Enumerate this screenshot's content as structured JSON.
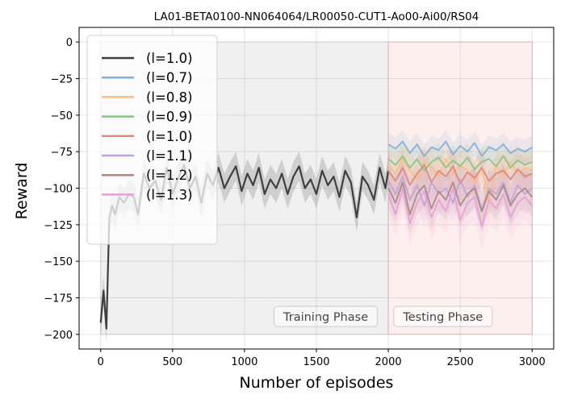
{
  "chart_data": {
    "type": "line",
    "title": "LA01-BETA0100-NN064064/LR00050-CUT1-Ao00-Ai00/RS04",
    "xlabel": "Number of episodes",
    "ylabel": "Reward",
    "xlim": [
      -150,
      3150
    ],
    "ylim": [
      -210,
      10
    ],
    "xticks": [
      0,
      500,
      1000,
      1500,
      2000,
      2500,
      3000
    ],
    "yticks": [
      0,
      -25,
      -50,
      -75,
      -100,
      -125,
      -150,
      -175,
      -200
    ],
    "xtick_labels": [
      "0",
      "500",
      "1000",
      "1500",
      "2000",
      "2500",
      "3000"
    ],
    "ytick_labels": [
      "0",
      "−25",
      "−50",
      "−75",
      "−100",
      "−125",
      "−150",
      "−175",
      "−200"
    ],
    "grid": true,
    "legend_position": "top-left",
    "phases": [
      {
        "label": "Training Phase",
        "x_start": 0,
        "x_end": 2000,
        "y_min": -200,
        "y_max": 0,
        "color": "#e6e6e6"
      },
      {
        "label": "Testing Phase",
        "x_start": 2000,
        "x_end": 3000,
        "y_min": -200,
        "y_max": 0,
        "color": "#fde4e4"
      }
    ],
    "series": [
      {
        "name": "(l=1.0)",
        "color": "#3f3f3f",
        "phase": "training",
        "band": 10,
        "x": [
          0,
          20,
          40,
          60,
          80,
          100,
          130,
          160,
          200,
          230,
          260,
          300,
          340,
          380,
          420,
          460,
          500,
          540,
          580,
          620,
          660,
          700,
          740,
          780,
          820,
          860,
          900,
          940,
          980,
          1020,
          1060,
          1100,
          1140,
          1180,
          1220,
          1260,
          1300,
          1340,
          1380,
          1420,
          1460,
          1500,
          1540,
          1580,
          1620,
          1660,
          1700,
          1740,
          1780,
          1820,
          1860,
          1900,
          1940,
          1980,
          2000
        ],
        "values": [
          -192,
          -170,
          -196,
          -120,
          -112,
          -118,
          -106,
          -110,
          -104,
          -106,
          -118,
          -90,
          -100,
          -95,
          -108,
          -86,
          -104,
          -93,
          -84,
          -100,
          -92,
          -110,
          -90,
          -98,
          -86,
          -100,
          -92,
          -85,
          -102,
          -90,
          -98,
          -86,
          -104,
          -94,
          -100,
          -90,
          -104,
          -92,
          -85,
          -100,
          -94,
          -104,
          -88,
          -98,
          -92,
          -106,
          -88,
          -96,
          -120,
          -92,
          -98,
          -108,
          -86,
          -100,
          -88
        ]
      },
      {
        "name": "(l=0.7)",
        "color": "#7fb0d8",
        "phase": "testing",
        "band": 8,
        "x": [
          2000,
          2050,
          2100,
          2150,
          2200,
          2250,
          2300,
          2350,
          2400,
          2450,
          2500,
          2550,
          2600,
          2650,
          2700,
          2750,
          2800,
          2850,
          2900,
          2950,
          3000
        ],
        "values": [
          -70,
          -73,
          -68,
          -76,
          -70,
          -78,
          -72,
          -74,
          -68,
          -77,
          -71,
          -75,
          -69,
          -78,
          -72,
          -74,
          -70,
          -76,
          -73,
          -75,
          -72
        ]
      },
      {
        "name": "(l=0.8)",
        "color": "#ffbc7d",
        "phase": "testing",
        "band": 12,
        "x": [
          2000,
          2050,
          2100,
          2150,
          2200,
          2250,
          2300,
          2350,
          2400,
          2450,
          2500,
          2550,
          2600,
          2650,
          2700,
          2750,
          2800,
          2850,
          2900,
          2950,
          3000
        ],
        "values": [
          -84,
          -90,
          -80,
          -88,
          -94,
          -82,
          -86,
          -92,
          -80,
          -90,
          -84,
          -88,
          -96,
          -85,
          -110,
          -84,
          -92,
          -82,
          -90,
          -86,
          -88
        ]
      },
      {
        "name": "(l=0.9)",
        "color": "#86c585",
        "phase": "testing",
        "band": 10,
        "x": [
          2000,
          2050,
          2100,
          2150,
          2200,
          2250,
          2300,
          2350,
          2400,
          2450,
          2500,
          2550,
          2600,
          2650,
          2700,
          2750,
          2800,
          2850,
          2900,
          2950,
          3000
        ],
        "values": [
          -80,
          -84,
          -78,
          -86,
          -80,
          -88,
          -82,
          -79,
          -86,
          -81,
          -85,
          -79,
          -87,
          -82,
          -80,
          -85,
          -78,
          -86,
          -81,
          -84,
          -82
        ]
      },
      {
        "name": "(l=1.0)",
        "color": "#e08484",
        "phase": "testing",
        "band": 12,
        "x": [
          2000,
          2050,
          2100,
          2150,
          2200,
          2250,
          2300,
          2350,
          2400,
          2450,
          2500,
          2550,
          2600,
          2650,
          2700,
          2750,
          2800,
          2850,
          2900,
          2950,
          3000
        ],
        "values": [
          -88,
          -95,
          -86,
          -98,
          -90,
          -84,
          -96,
          -88,
          -92,
          -85,
          -97,
          -89,
          -93,
          -86,
          -95,
          -90,
          -88,
          -94,
          -87,
          -92,
          -90
        ]
      },
      {
        "name": "(l=1.1)",
        "color": "#bca4d8",
        "phase": "testing",
        "band": 14,
        "x": [
          2000,
          2050,
          2100,
          2150,
          2200,
          2250,
          2300,
          2350,
          2400,
          2450,
          2500,
          2550,
          2600,
          2650,
          2700,
          2750,
          2800,
          2850,
          2900,
          2950,
          3000
        ],
        "values": [
          -95,
          -104,
          -92,
          -108,
          -98,
          -112,
          -96,
          -104,
          -100,
          -110,
          -94,
          -106,
          -98,
          -115,
          -100,
          -104,
          -96,
          -110,
          -98,
          -104,
          -100
        ]
      },
      {
        "name": "(l=1.2)",
        "color": "#a88a82",
        "phase": "testing",
        "band": 14,
        "x": [
          2000,
          2050,
          2100,
          2150,
          2200,
          2250,
          2300,
          2350,
          2400,
          2450,
          2500,
          2550,
          2600,
          2650,
          2700,
          2750,
          2800,
          2850,
          2900,
          2950,
          3000
        ],
        "values": [
          -100,
          -110,
          -96,
          -118,
          -104,
          -98,
          -114,
          -102,
          -108,
          -96,
          -112,
          -104,
          -100,
          -116,
          -102,
          -108,
          -98,
          -112,
          -104,
          -100,
          -106
        ]
      },
      {
        "name": "(l=1.3)",
        "color": "#e8a0d4",
        "phase": "testing",
        "band": 16,
        "x": [
          2000,
          2050,
          2100,
          2150,
          2200,
          2250,
          2300,
          2350,
          2400,
          2450,
          2500,
          2550,
          2600,
          2650,
          2700,
          2750,
          2800,
          2850,
          2900,
          2950,
          3000
        ],
        "values": [
          -104,
          -118,
          -100,
          -124,
          -110,
          -102,
          -120,
          -108,
          -116,
          -100,
          -122,
          -110,
          -106,
          -126,
          -108,
          -114,
          -104,
          -120,
          -110,
          -106,
          -112
        ]
      }
    ]
  }
}
